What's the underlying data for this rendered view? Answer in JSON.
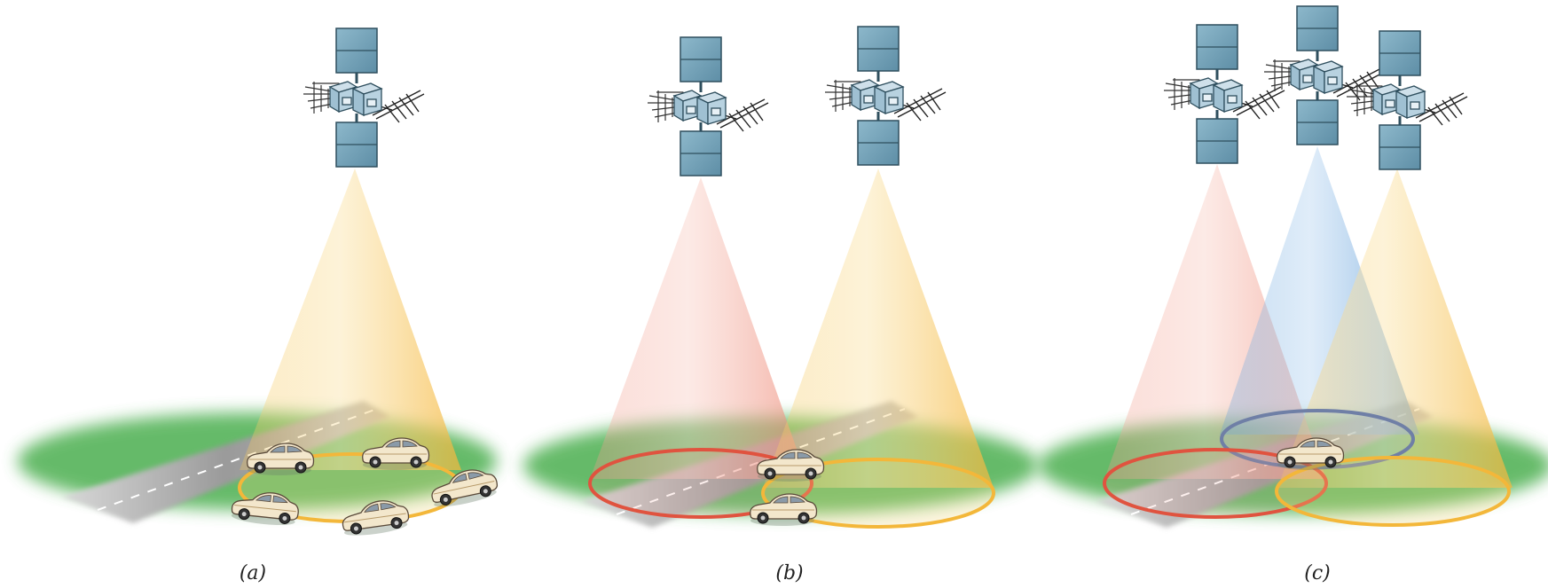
{
  "panels": [
    {
      "label": "(a)",
      "satellites": [
        {
          "beam": "yellow"
        }
      ],
      "coverage_areas": [
        "yellow"
      ],
      "car_count": 5
    },
    {
      "label": "(b)",
      "satellites": [
        {
          "beam": "red"
        },
        {
          "beam": "yellow"
        }
      ],
      "coverage_areas": [
        "red",
        "yellow"
      ],
      "car_count": 2
    },
    {
      "label": "(c)",
      "satellites": [
        {
          "beam": "red"
        },
        {
          "beam": "blue"
        },
        {
          "beam": "yellow"
        }
      ],
      "coverage_areas": [
        "red",
        "blue",
        "yellow"
      ],
      "car_count": 1
    }
  ],
  "colors": {
    "beam_yellow": "#f7c75a",
    "beam_red": "#f29a8a",
    "beam_blue": "#5b9bd8",
    "ring_yellow": "#f3b73a",
    "ring_red": "#e0533f",
    "ring_blue": "#6f7fa6",
    "ground": "#4caf50",
    "road": "#a9a9a9",
    "solar_panel": "#6f9fb5",
    "car_body": "#f3e7cc"
  },
  "icons": [
    "satellite-icon",
    "car-icon"
  ]
}
